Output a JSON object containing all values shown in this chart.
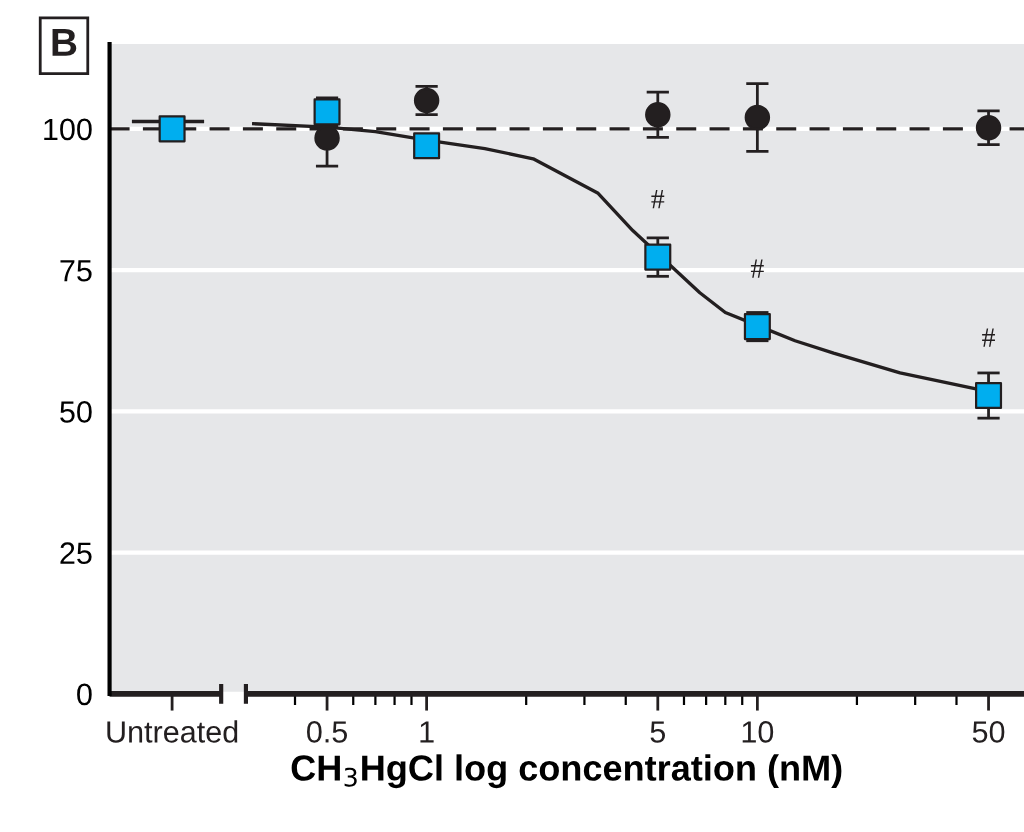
{
  "chart_data": {
    "type": "scatter",
    "xlabel": "CH$_{3}$HgCl log concentration (nM)",
    "log": "x",
    "xlim": [
      0.11,
      64
    ],
    "ylim": [
      0,
      115
    ],
    "xticks": [
      {
        "value": 0.17,
        "label": "Untreated"
      },
      {
        "value": 0.4,
        "label": null
      },
      0.5,
      {
        "value": 0.6,
        "label": null
      },
      {
        "value": 0.7,
        "label": null
      },
      {
        "value": 0.8,
        "label": null
      },
      {
        "value": 0.9,
        "label": null
      },
      1,
      {
        "value": 2,
        "label": null
      },
      {
        "value": 3,
        "label": null
      },
      {
        "value": 4,
        "label": null
      },
      5,
      {
        "value": 6,
        "label": null
      },
      {
        "value": 7,
        "label": null
      },
      {
        "value": 8,
        "label": null
      },
      {
        "value": 9,
        "label": null
      },
      10,
      {
        "value": 20,
        "label": null
      },
      {
        "value": 30,
        "label": null
      },
      {
        "value": 40,
        "label": null
      },
      50
    ],
    "yticks": [
      0,
      25,
      50,
      75,
      100
    ],
    "grid": "y",
    "series": [
      {
        "type": "line",
        "color": "#231f20",
        "x": [
          0.13,
          0.17,
          0.21,
          null,
          0.3,
          0.5,
          0.7,
          1,
          1.5,
          2.1,
          3.3,
          4.2,
          6.7,
          8,
          13,
          17,
          27,
          50
        ],
        "values": [
          101.3,
          101.3,
          101.3,
          null,
          100.9,
          100.3,
          99.5,
          98,
          96.5,
          94.7,
          88.6,
          82,
          71,
          67.5,
          62.5,
          60.3,
          56.8,
          53.5
        ]
      },
      {
        "color": "#231f20",
        "marker": "circle",
        "x": [
          0.5,
          1,
          5,
          10,
          50
        ],
        "values": [
          98.4,
          105,
          102.5,
          102,
          100.2
        ],
        "errors": [
          5,
          2.5,
          4,
          6,
          3
        ]
      },
      {
        "color": "#00aeef",
        "marker": "square",
        "x": [
          0.17,
          0.5,
          1,
          5,
          10,
          50
        ],
        "values": [
          100,
          103,
          97,
          77.3,
          65,
          52.8
        ],
        "errors": [
          null,
          2.5,
          1.5,
          3.4,
          2.5,
          4
        ]
      }
    ],
    "ref_lines": [
      {
        "axis": "y",
        "value": 100,
        "color": "#231f20",
        "line_style": "dashed"
      }
    ],
    "annotations": [
      "B",
      {
        "text": "#",
        "x": 5,
        "y": 77.3
      },
      {
        "text": "#",
        "x": 10,
        "y": 65
      },
      {
        "text": "#",
        "x": 50,
        "y": 52.8
      }
    ]
  }
}
